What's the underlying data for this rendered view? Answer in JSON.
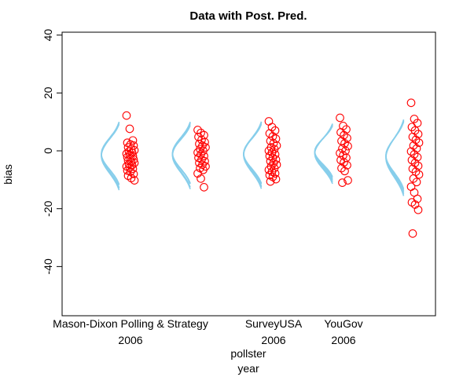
{
  "chart_data": {
    "type": "scatter",
    "title": "Data with Post. Pred.",
    "ylabel": "bias",
    "xlabel": "pollster",
    "xlabel2": "year",
    "ylim": [
      -57,
      41
    ],
    "yticks": [
      -40,
      -20,
      0,
      20,
      40
    ],
    "grid": false,
    "legend": "none",
    "colors": {
      "points": "#ff0000",
      "density": "#87ceeb"
    },
    "categories": [
      {
        "label": "Mason-Dixon Polling & Strategy",
        "year": "2006",
        "label_visible": "Mason-Dixon Polling & Strategy",
        "year_visible": "2006"
      },
      {
        "label": "",
        "year": "",
        "label_visible": "",
        "year_visible": ""
      },
      {
        "label": "SurveyUSA",
        "year": "2006",
        "label_visible": "SurveyUSA",
        "year_visible": "2006"
      },
      {
        "label": "YouGov",
        "year": "2006",
        "label_visible": "YouGov",
        "year_visible": "2006"
      },
      {
        "label": "",
        "year": "",
        "label_visible": "",
        "year_visible": ""
      }
    ],
    "series": [
      {
        "values": [
          12.2,
          7.6,
          3.6,
          2.8,
          2.2,
          1.8,
          1.2,
          0.6,
          0.2,
          -0.2,
          -0.6,
          -1.0,
          -1.4,
          -1.8,
          -2.2,
          -2.6,
          -3.0,
          -3.4,
          -3.8,
          -4.2,
          -4.6,
          -5.0,
          -5.4,
          -5.8,
          -6.2,
          -6.8,
          -7.2,
          -8.0,
          -8.6,
          -9.4,
          -10.2
        ],
        "density": [
          {
            "mean": -1.5,
            "sd": 5.6
          },
          {
            "mean": -1.2,
            "sd": 5.2
          },
          {
            "mean": -1.8,
            "sd": 5.9
          },
          {
            "mean": -1.0,
            "sd": 5.4
          },
          {
            "mean": -1.6,
            "sd": 5.7
          }
        ]
      },
      {
        "values": [
          7.2,
          6.2,
          5.4,
          4.8,
          3.8,
          3.0,
          2.4,
          1.8,
          1.2,
          0.6,
          0.0,
          -0.6,
          -1.2,
          -1.8,
          -2.4,
          -3.0,
          -3.6,
          -4.2,
          -4.8,
          -5.4,
          -6.0,
          -6.6,
          -7.8,
          -9.6,
          -12.6
        ],
        "density": [
          {
            "mean": -1.0,
            "sd": 5.2
          },
          {
            "mean": -1.4,
            "sd": 5.6
          },
          {
            "mean": -1.2,
            "sd": 5.0
          },
          {
            "mean": -1.6,
            "sd": 5.8
          },
          {
            "mean": -0.8,
            "sd": 5.3
          }
        ]
      },
      {
        "values": [
          10.2,
          8.2,
          7.0,
          6.0,
          5.0,
          4.2,
          3.4,
          2.6,
          1.8,
          1.2,
          0.6,
          0.0,
          -0.6,
          -1.2,
          -1.8,
          -2.4,
          -3.0,
          -3.6,
          -4.2,
          -4.8,
          -5.4,
          -6.0,
          -6.6,
          -7.2,
          -7.8,
          -8.4,
          -9.0,
          -9.8,
          -10.6
        ],
        "density": [
          {
            "mean": -1.2,
            "sd": 5.5
          },
          {
            "mean": -1.0,
            "sd": 5.1
          },
          {
            "mean": -1.5,
            "sd": 5.8
          },
          {
            "mean": -0.9,
            "sd": 5.3
          },
          {
            "mean": -1.3,
            "sd": 5.6
          }
        ]
      },
      {
        "values": [
          11.4,
          8.6,
          7.4,
          6.4,
          5.4,
          4.4,
          3.4,
          2.6,
          1.6,
          0.8,
          0.0,
          -0.8,
          -1.6,
          -2.4,
          -3.2,
          -4.0,
          -5.0,
          -6.0,
          -7.0,
          -10.2,
          -11.0
        ],
        "density": [
          {
            "mean": -0.4,
            "sd": 4.6
          },
          {
            "mean": -0.8,
            "sd": 5.0
          },
          {
            "mean": -0.2,
            "sd": 4.4
          },
          {
            "mean": -0.6,
            "sd": 4.8
          },
          {
            "mean": -1.0,
            "sd": 5.2
          }
        ]
      },
      {
        "values": [
          16.6,
          11.0,
          9.6,
          8.2,
          7.0,
          5.8,
          4.8,
          3.8,
          2.8,
          1.8,
          0.8,
          -0.2,
          -1.2,
          -2.2,
          -3.2,
          -4.2,
          -5.2,
          -6.2,
          -7.2,
          -8.2,
          -9.6,
          -10.8,
          -12.4,
          -14.4,
          -16.6,
          -17.8,
          -18.6,
          -20.4,
          -28.6
        ],
        "density": [
          {
            "mean": -2.0,
            "sd": 6.2
          },
          {
            "mean": -1.6,
            "sd": 5.8
          },
          {
            "mean": -2.4,
            "sd": 6.6
          },
          {
            "mean": -1.8,
            "sd": 6.0
          },
          {
            "mean": -2.2,
            "sd": 6.4
          }
        ]
      }
    ]
  }
}
